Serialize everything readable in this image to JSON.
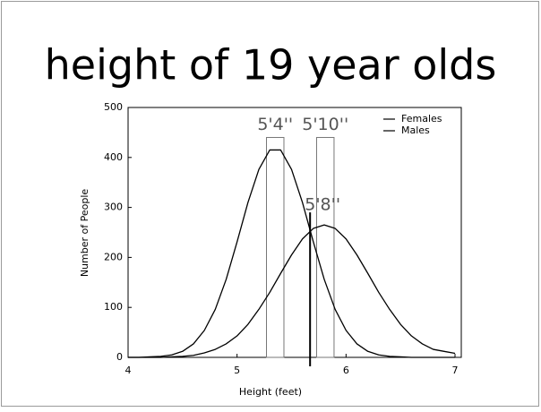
{
  "chart_data": {
    "type": "line",
    "title": "height of 19 year olds",
    "x_label": "Height (feet)",
    "y_label": "Number of People",
    "x": [
      4.0,
      4.1,
      4.2,
      4.3,
      4.4,
      4.5,
      4.6,
      4.7,
      4.8,
      4.9,
      5.0,
      5.1,
      5.2,
      5.3,
      5.4,
      5.5,
      5.6,
      5.7,
      5.8,
      5.9,
      6.0,
      6.1,
      6.2,
      6.3,
      6.4,
      6.5,
      6.6,
      6.7,
      6.8,
      6.9,
      7.0
    ],
    "series": [
      {
        "name": "Females",
        "color": "#000000",
        "values": [
          0,
          0,
          1,
          2,
          5,
          12,
          27,
          54,
          96,
          156,
          231,
          310,
          376,
          415,
          415,
          376,
          310,
          231,
          156,
          96,
          54,
          27,
          12,
          5,
          2,
          1,
          0,
          0,
          0,
          0,
          0
        ]
      },
      {
        "name": "Males",
        "color": "#000000",
        "values": [
          0,
          0,
          0,
          0,
          1,
          2,
          4,
          9,
          16,
          27,
          43,
          66,
          96,
          130,
          168,
          205,
          237,
          258,
          265,
          258,
          237,
          205,
          168,
          130,
          96,
          66,
          43,
          27,
          16,
          12,
          8
        ]
      }
    ],
    "highlights": [
      {
        "label": "5'4''",
        "xrange": [
          5.27,
          5.43
        ],
        "top": 440
      },
      {
        "label": "5'10''",
        "xrange": [
          5.73,
          5.89
        ],
        "top": 440
      }
    ],
    "markers": [
      {
        "label": "5'8''",
        "x": 5.67,
        "top": 290
      }
    ],
    "xlim": [
      4,
      7
    ],
    "ylim": [
      0,
      500
    ],
    "xticks": [
      4,
      5,
      6,
      7
    ],
    "yticks": [
      0,
      100,
      200,
      300,
      400,
      500
    ],
    "legend": "upper right"
  }
}
